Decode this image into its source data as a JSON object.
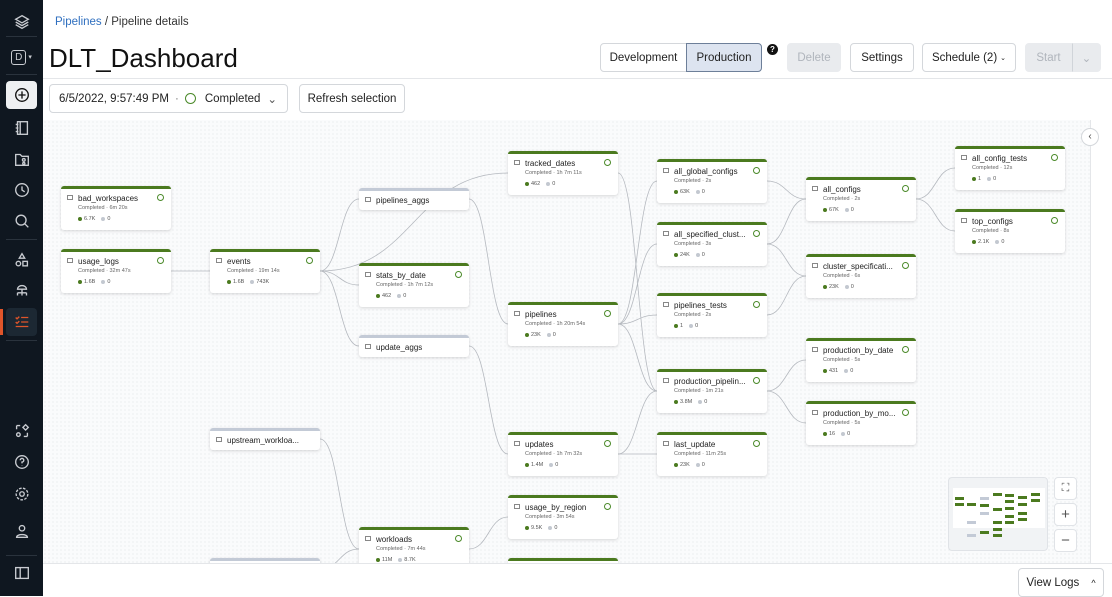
{
  "breadcrumb": {
    "root": "Pipelines",
    "sep": " / ",
    "current": "Pipeline details"
  },
  "title": "DLT_Dashboard",
  "workspace_initial": "D",
  "header_buttons": {
    "development": "Development",
    "production": "Production",
    "delete": "Delete",
    "settings": "Settings",
    "schedule": "Schedule (2)",
    "start": "Start"
  },
  "run_selector": {
    "timestamp": "6/5/2022, 9:57:49 PM",
    "sep": "·",
    "status": "Completed"
  },
  "refresh_label": "Refresh selection",
  "view_logs": "View Logs",
  "colors": {
    "accent": "#4b7a1f",
    "active_nav": "#e0552a",
    "link": "#2f6fbf"
  },
  "graph": {
    "nodes": [
      {
        "id": "bad_workspaces",
        "name": "bad_workspaces",
        "status": "Completed · 6m 20s",
        "written": "6.7K",
        "dropped": "0"
      },
      {
        "id": "usage_logs",
        "name": "usage_logs",
        "status": "Completed · 32m 47s",
        "written": "1.6B",
        "dropped": "0"
      },
      {
        "id": "events",
        "name": "events",
        "status": "Completed · 19m 14s",
        "written": "1.6B",
        "dropped": "743K"
      },
      {
        "id": "pipelines_aggs",
        "name": "pipelines_aggs",
        "view": true
      },
      {
        "id": "stats_by_date",
        "name": "stats_by_date",
        "status": "Completed · 1h 7m 12s",
        "written": "462",
        "dropped": "0"
      },
      {
        "id": "update_aggs",
        "name": "update_aggs",
        "view": true
      },
      {
        "id": "upstream_workloads",
        "name": "upstream_workloa...",
        "view": true
      },
      {
        "id": "workloads",
        "name": "workloads",
        "status": "Completed · 7m 44s",
        "written": "11M",
        "dropped": "8.7K"
      },
      {
        "id": "hidden_view",
        "name": "",
        "view": true
      },
      {
        "id": "tracked_dates",
        "name": "tracked_dates",
        "status": "Completed · 1h 7m 11s",
        "written": "462",
        "dropped": "0"
      },
      {
        "id": "pipelines",
        "name": "pipelines",
        "status": "Completed · 1h 20m 54s",
        "written": "23K",
        "dropped": "0"
      },
      {
        "id": "updates",
        "name": "updates",
        "status": "Completed · 1h 7m 32s",
        "written": "1.4M",
        "dropped": "0"
      },
      {
        "id": "usage_by_region",
        "name": "usage_by_region",
        "status": "Completed · 3m 54s",
        "written": "9.5K",
        "dropped": "0"
      },
      {
        "id": "hidden_table",
        "name": ""
      },
      {
        "id": "all_global_configs",
        "name": "all_global_configs",
        "status": "Completed · 2s",
        "written": "63K",
        "dropped": "0"
      },
      {
        "id": "all_specified_clusters",
        "name": "all_specified_clust...",
        "status": "Completed · 3s",
        "written": "24K",
        "dropped": "0"
      },
      {
        "id": "pipelines_tests",
        "name": "pipelines_tests",
        "status": "Completed · 2s",
        "written": "1",
        "dropped": "0"
      },
      {
        "id": "production_pipelines",
        "name": "production_pipelin...",
        "status": "Completed · 1m 21s",
        "written": "3.8M",
        "dropped": "0"
      },
      {
        "id": "last_update",
        "name": "last_update",
        "status": "Completed · 11m 25s",
        "written": "23K",
        "dropped": "0"
      },
      {
        "id": "all_configs",
        "name": "all_configs",
        "status": "Completed · 2s",
        "written": "67K",
        "dropped": "0"
      },
      {
        "id": "cluster_specifications",
        "name": "cluster_specificati...",
        "status": "Completed · 6s",
        "written": "23K",
        "dropped": "0"
      },
      {
        "id": "production_by_date",
        "name": "production_by_date",
        "status": "Completed · 5s",
        "written": "431",
        "dropped": "0"
      },
      {
        "id": "production_by_month",
        "name": "production_by_mo...",
        "status": "Completed · 5s",
        "written": "16",
        "dropped": "0"
      },
      {
        "id": "all_config_tests",
        "name": "all_config_tests",
        "status": "Completed · 12s",
        "written": "1",
        "dropped": "0"
      },
      {
        "id": "top_configs",
        "name": "top_configs",
        "status": "Completed · 8s",
        "written": "2.1K",
        "dropped": "0"
      }
    ],
    "edges": [
      [
        "usage_logs",
        "events"
      ],
      [
        "events",
        "pipelines_aggs"
      ],
      [
        "events",
        "stats_by_date"
      ],
      [
        "events",
        "update_aggs"
      ],
      [
        "events",
        "tracked_dates"
      ],
      [
        "pipelines_aggs",
        "pipelines"
      ],
      [
        "update_aggs",
        "updates"
      ],
      [
        "upstream_workloads",
        "workloads"
      ],
      [
        "hidden_view",
        "workloads"
      ],
      [
        "workloads",
        "usage_by_region"
      ],
      [
        "tracked_dates",
        "production_pipelines"
      ],
      [
        "pipelines",
        "all_global_configs"
      ],
      [
        "pipelines",
        "all_specified_clusters"
      ],
      [
        "pipelines",
        "pipelines_tests"
      ],
      [
        "pipelines",
        "production_pipelines"
      ],
      [
        "updates",
        "production_pipelines"
      ],
      [
        "updates",
        "last_update"
      ],
      [
        "all_global_configs",
        "all_configs"
      ],
      [
        "all_specified_clusters",
        "all_configs"
      ],
      [
        "all_specified_clusters",
        "cluster_specifications"
      ],
      [
        "pipelines_tests",
        "cluster_specifications"
      ],
      [
        "all_configs",
        "all_config_tests"
      ],
      [
        "all_configs",
        "top_configs"
      ],
      [
        "production_pipelines",
        "production_by_date"
      ],
      [
        "production_pipelines",
        "production_by_month"
      ]
    ]
  }
}
